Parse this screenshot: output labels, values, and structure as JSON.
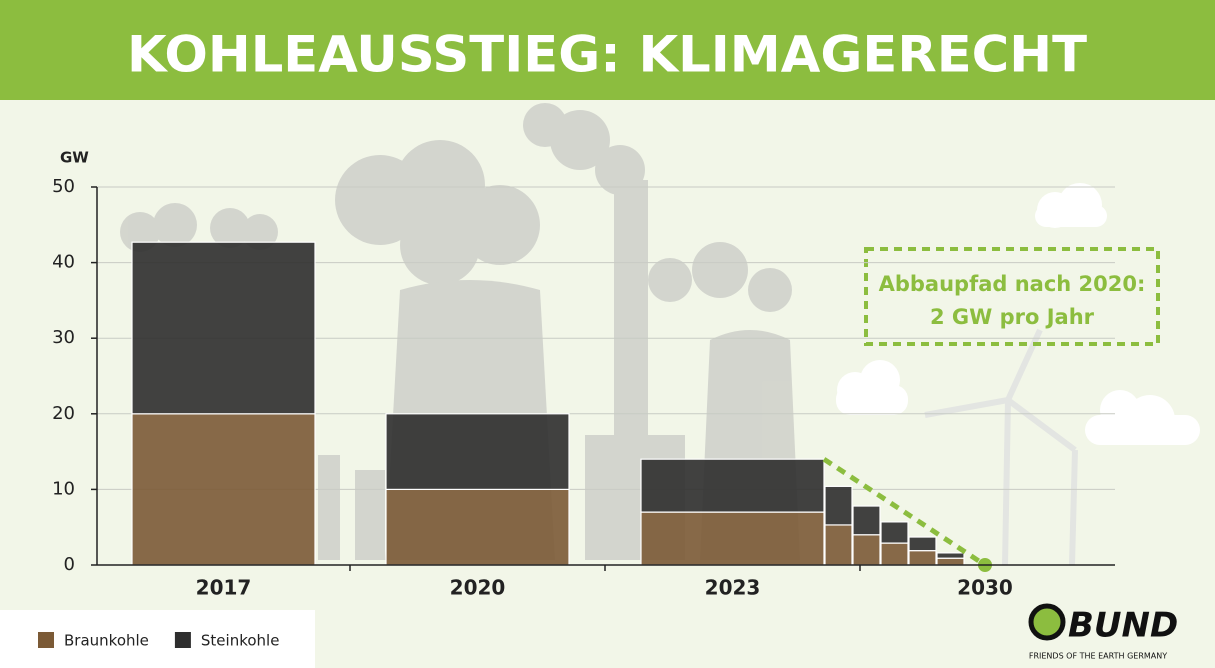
{
  "chart_data": {
    "type": "stacked-bar",
    "title": "KOHLEAUSSTIEG: KLIMAGERECHT",
    "y_label": "GW",
    "categories": [
      "2017",
      "2020",
      "2023",
      null,
      null,
      null,
      null,
      null,
      "2030"
    ],
    "series": [
      {
        "name": "Braunkohle",
        "color": "#7b5a36",
        "values": [
          20,
          10,
          7,
          5.3,
          4,
          2.9,
          1.9,
          0.9,
          0
        ]
      },
      {
        "name": "Steinkohle",
        "color": "#2e2e2e",
        "values": [
          22.7,
          10,
          7,
          5.1,
          3.8,
          2.8,
          1.8,
          0.7,
          0
        ]
      }
    ],
    "ylim": [
      0,
      50
    ],
    "yticks": [
      0,
      10,
      20,
      30,
      40,
      50
    ],
    "grid": true,
    "legend": "bottom-left",
    "annotation": [
      "Abbaupfad nach 2020:",
      "2 GW pro Jahr"
    ]
  },
  "logo": {
    "name": "BUND",
    "tagline": "FRIENDS OF THE EARTH GERMANY"
  }
}
